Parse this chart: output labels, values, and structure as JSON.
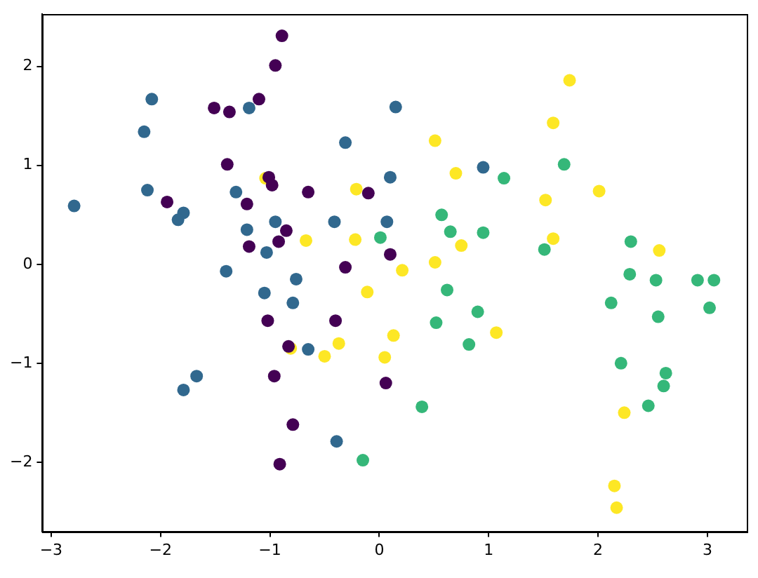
{
  "chart_data": {
    "type": "scatter",
    "marker": "circle",
    "grid": false,
    "legend": false,
    "xlim": [
      -3.08,
      3.36
    ],
    "ylim": [
      -2.7,
      2.53
    ],
    "xticks": [
      -3,
      -2,
      -1,
      0,
      1,
      2,
      3
    ],
    "yticks": [
      -2,
      -1,
      0,
      1,
      2
    ],
    "series": [
      {
        "color": "#440154",
        "x": [
          -0.89,
          -0.95,
          -1.1,
          -1.51,
          -1.37,
          -1.39,
          -1.01,
          -0.98,
          -0.65,
          -0.1,
          -1.94,
          -1.21,
          -0.85,
          -0.92,
          -1.19,
          0.1,
          -0.31,
          -0.4,
          -1.02,
          -0.83,
          -0.96,
          0.06,
          -0.79,
          -0.91
        ],
        "values": [
          2.31,
          2.01,
          1.67,
          1.58,
          1.54,
          1.01,
          0.88,
          0.8,
          0.73,
          0.72,
          0.63,
          0.61,
          0.34,
          0.23,
          0.18,
          0.1,
          -0.03,
          -0.57,
          -0.57,
          -0.83,
          -1.13,
          -1.2,
          -1.62,
          -2.02
        ]
      },
      {
        "color": "#31688e",
        "x": [
          -2.79,
          -2.08,
          -2.15,
          -2.12,
          -1.79,
          -1.84,
          -1.19,
          -1.31,
          -1.21,
          -0.95,
          -1.03,
          -0.31,
          -0.41,
          0.1,
          0.07,
          -1.4,
          -0.76,
          -1.05,
          -0.79,
          -0.65,
          -1.67,
          -1.79,
          -0.39,
          0.15,
          0.95
        ],
        "values": [
          0.59,
          1.67,
          1.34,
          0.75,
          0.52,
          0.45,
          1.58,
          0.73,
          0.35,
          0.43,
          0.12,
          1.23,
          0.43,
          0.88,
          0.43,
          -0.07,
          -0.15,
          -0.29,
          -0.39,
          -0.86,
          -1.13,
          -1.27,
          -1.79,
          1.59,
          0.98
        ]
      },
      {
        "color": "#35b779",
        "x": [
          1.69,
          1.14,
          0.57,
          0.65,
          0.95,
          0.01,
          1.51,
          2.3,
          2.29,
          2.53,
          2.91,
          3.06,
          0.62,
          0.9,
          0.52,
          2.12,
          2.55,
          3.02,
          0.82,
          2.21,
          2.62,
          2.6,
          2.46,
          0.39,
          -0.15
        ],
        "values": [
          1.01,
          0.87,
          0.5,
          0.33,
          0.32,
          0.27,
          0.15,
          0.23,
          -0.1,
          -0.16,
          -0.16,
          -0.16,
          -0.26,
          -0.48,
          -0.59,
          -0.39,
          -0.53,
          -0.44,
          -0.81,
          -1.0,
          -1.1,
          -1.23,
          -1.43,
          -1.44,
          -1.98
        ]
      },
      {
        "color": "#fde725",
        "x": [
          -1.04,
          -0.21,
          -0.67,
          -0.22,
          -0.11,
          -0.37,
          -0.5,
          -0.81,
          0.05,
          0.13,
          0.51,
          0.7,
          1.74,
          1.59,
          2.01,
          1.52,
          1.59,
          0.75,
          2.56,
          0.51,
          0.21,
          1.07,
          2.24,
          2.15,
          2.17
        ],
        "values": [
          0.87,
          0.76,
          0.24,
          0.25,
          -0.28,
          -0.8,
          -0.93,
          -0.85,
          -0.94,
          -0.72,
          1.25,
          0.92,
          1.86,
          1.43,
          0.74,
          0.65,
          0.26,
          0.19,
          0.14,
          0.02,
          -0.06,
          -0.69,
          -1.5,
          -2.24,
          -2.46
        ]
      }
    ]
  }
}
